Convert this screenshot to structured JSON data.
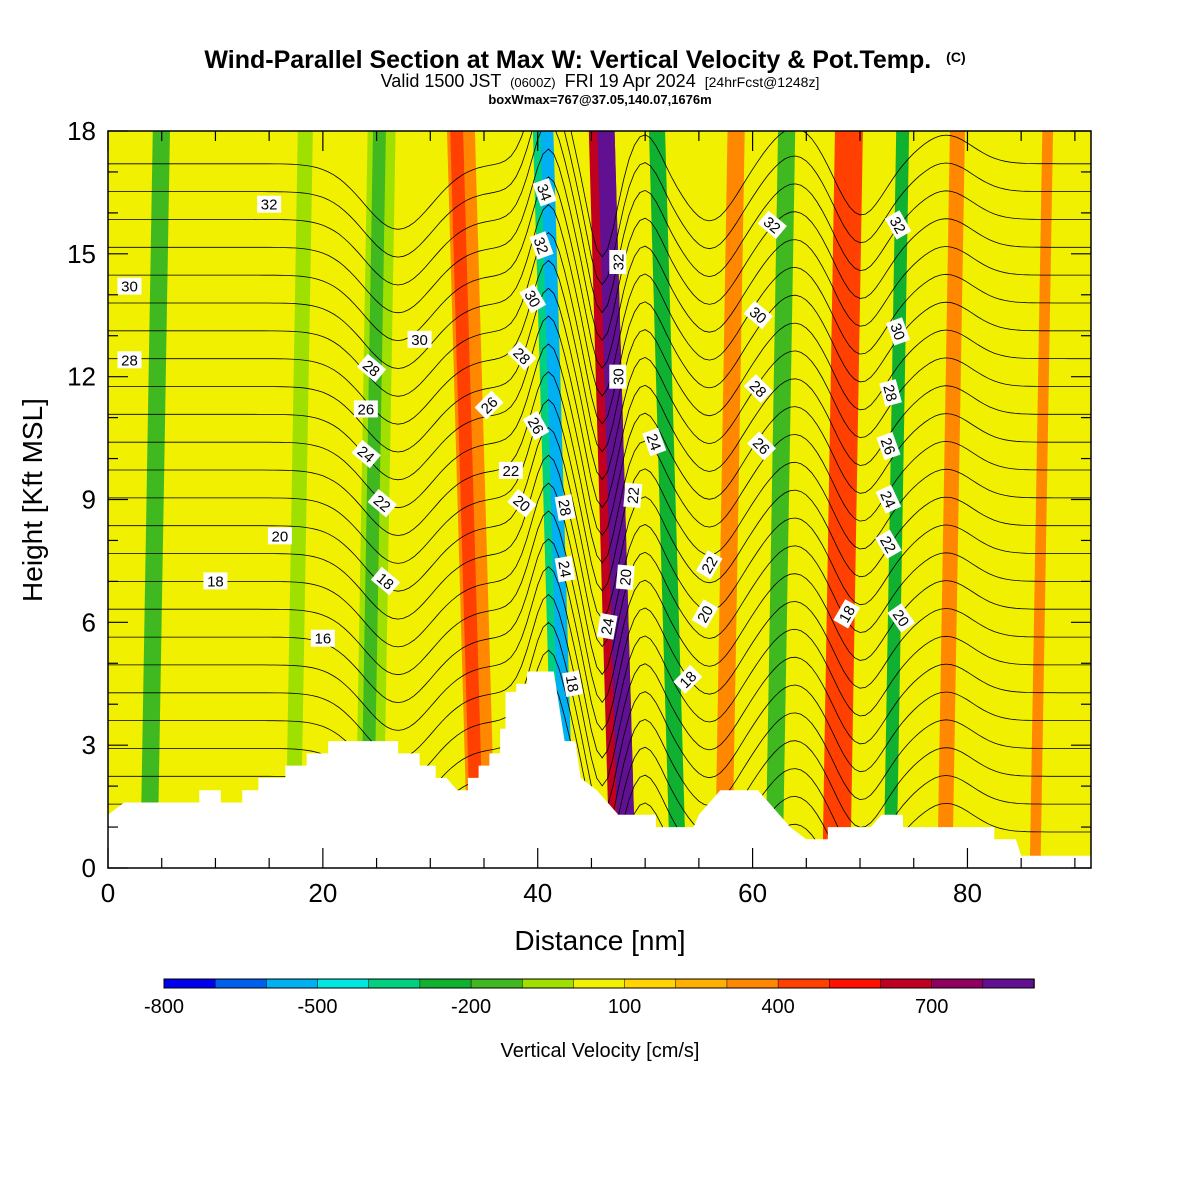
{
  "title": {
    "main": "Wind-Parallel Section at Max W: Vertical Velocity & Pot.Temp.",
    "copyright": "(C)",
    "valid_prefix": "Valid 1500 JST",
    "valid_zulu": "(0600Z)",
    "valid_date": "FRI 19 Apr 2024",
    "forecast": "[24hrFcst@1248z]",
    "box": "boxWmax=767@37.05,140.07,1676m"
  },
  "chart_data": {
    "type": "heatmap",
    "xlabel": "Distance [nm]",
    "ylabel": "Height [Kft MSL]",
    "xlim": [
      0,
      91.5
    ],
    "ylim": [
      0,
      18
    ],
    "x_ticks": [
      0,
      20,
      40,
      60,
      80
    ],
    "y_ticks": [
      0,
      3,
      6,
      9,
      12,
      15,
      18
    ],
    "colorbar": {
      "title": "Vertical Velocity [cm/s]",
      "levels": [
        -800,
        -700,
        -600,
        -500,
        -400,
        -300,
        -200,
        -100,
        0,
        100,
        200,
        300,
        400,
        500,
        600,
        700,
        800
      ],
      "labeled": [
        -800,
        -500,
        -200,
        100,
        400,
        700
      ],
      "colors": [
        "#0000ee",
        "#0060ee",
        "#00b0f0",
        "#00e8e0",
        "#00d080",
        "#10b030",
        "#40b820",
        "#a0e000",
        "#f0f000",
        "#ffd400",
        "#ffb000",
        "#ff8800",
        "#ff4000",
        "#ff1000",
        "#c00020",
        "#900060",
        "#601090"
      ]
    },
    "velocity_bands": [
      {
        "x": 0,
        "w": 11,
        "v": -100
      },
      {
        "x": 3,
        "w": 1.6,
        "v": -300
      },
      {
        "x": 7.3,
        "w": 1.2,
        "v": -100
      },
      {
        "x": 16.5,
        "w": 1.4,
        "v": -200
      },
      {
        "x": 23,
        "w": 2.6,
        "v": -200
      },
      {
        "x": 23.5,
        "w": 1.2,
        "v": -300
      },
      {
        "x": 33.5,
        "w": 2.6,
        "v": 200
      },
      {
        "x": 33.8,
        "w": 1.2,
        "v": 300
      },
      {
        "x": 41.5,
        "w": 1.4,
        "v": -500
      },
      {
        "x": 42.2,
        "w": 1.2,
        "v": -700
      },
      {
        "x": 46.7,
        "w": 2.4,
        "v": 500
      },
      {
        "x": 47.5,
        "w": 1.6,
        "v": 700
      },
      {
        "x": 52.3,
        "w": 1.5,
        "v": -400
      },
      {
        "x": 56.5,
        "w": 1.6,
        "v": 200
      },
      {
        "x": 61.2,
        "w": 1.6,
        "v": -300
      },
      {
        "x": 66.5,
        "w": 2.6,
        "v": 300
      },
      {
        "x": 72.2,
        "w": 1.2,
        "v": -400
      },
      {
        "x": 77.2,
        "w": 1.4,
        "v": 200
      },
      {
        "x": 80.8,
        "w": 1.6,
        "v": -100
      },
      {
        "x": 85.8,
        "w": 1.0,
        "v": 200
      },
      {
        "x": 88.7,
        "w": 1.5,
        "v": -100
      }
    ],
    "terrain": [
      [
        0,
        1.3
      ],
      [
        1.5,
        1.6
      ],
      [
        8.5,
        1.6
      ],
      [
        8.5,
        1.9
      ],
      [
        10.5,
        1.9
      ],
      [
        10.5,
        1.6
      ],
      [
        12.5,
        1.6
      ],
      [
        12.5,
        1.9
      ],
      [
        14,
        1.9
      ],
      [
        14,
        2.2
      ],
      [
        16.5,
        2.2
      ],
      [
        16.5,
        2.5
      ],
      [
        18.5,
        2.5
      ],
      [
        18.5,
        2.8
      ],
      [
        20.5,
        2.8
      ],
      [
        20.5,
        3.1
      ],
      [
        27,
        3.1
      ],
      [
        27,
        2.8
      ],
      [
        29,
        2.8
      ],
      [
        29,
        2.5
      ],
      [
        30.5,
        2.5
      ],
      [
        30.5,
        2.2
      ],
      [
        31.5,
        2.2
      ],
      [
        32.5,
        1.9
      ],
      [
        33.5,
        1.9
      ],
      [
        33.5,
        2.2
      ],
      [
        34.5,
        2.2
      ],
      [
        34.5,
        2.5
      ],
      [
        35.5,
        2.5
      ],
      [
        35.5,
        2.8
      ],
      [
        36.5,
        2.8
      ],
      [
        36.5,
        3.4
      ],
      [
        37,
        3.4
      ],
      [
        37,
        4.3
      ],
      [
        38,
        4.3
      ],
      [
        38,
        4.5
      ],
      [
        39,
        4.5
      ],
      [
        39,
        4.8
      ],
      [
        41,
        4.8
      ],
      [
        41.5,
        4.8
      ],
      [
        42.5,
        3.1
      ],
      [
        43.5,
        3.1
      ],
      [
        44,
        2.2
      ],
      [
        45.5,
        1.9
      ],
      [
        46.5,
        1.6
      ],
      [
        47.5,
        1.3
      ],
      [
        51,
        1.3
      ],
      [
        51,
        1.0
      ],
      [
        54.5,
        1.0
      ],
      [
        55,
        1.3
      ],
      [
        56,
        1.6
      ],
      [
        57,
        1.9
      ],
      [
        60.5,
        1.9
      ],
      [
        61.5,
        1.6
      ],
      [
        62.5,
        1.3
      ],
      [
        63.5,
        1.0
      ],
      [
        65,
        0.7
      ],
      [
        67,
        0.7
      ],
      [
        67,
        1.0
      ],
      [
        71,
        1.0
      ],
      [
        72,
        1.3
      ],
      [
        74,
        1.3
      ],
      [
        74,
        1.0
      ],
      [
        82.5,
        1.0
      ],
      [
        82.5,
        0.7
      ],
      [
        84.5,
        0.7
      ],
      [
        85,
        0.3
      ],
      [
        91.5,
        0.3
      ]
    ],
    "isentrope_values": [
      10.5,
      11.5,
      12.5,
      13.5,
      14.5,
      15.5,
      16.5,
      17.5,
      18.5,
      19.5,
      20.5,
      21.5,
      22.5,
      23.5,
      24.5,
      25.5,
      26.5,
      27.5,
      28.5,
      29.5,
      30.5,
      31.5,
      32.5,
      33.5,
      34.5,
      35.5
    ],
    "contour_labels": [
      {
        "t": "32",
        "x": 15,
        "y": 16.2,
        "r": 0
      },
      {
        "t": "30",
        "x": 2,
        "y": 14.2,
        "r": 0
      },
      {
        "t": "28",
        "x": 2,
        "y": 12.4,
        "r": 0
      },
      {
        "t": "28",
        "x": 24.5,
        "y": 12.2,
        "r": 40
      },
      {
        "t": "30",
        "x": 29,
        "y": 12.9,
        "r": 0
      },
      {
        "t": "26",
        "x": 24,
        "y": 11.2,
        "r": 0
      },
      {
        "t": "24",
        "x": 24,
        "y": 10.1,
        "r": 40
      },
      {
        "t": "22",
        "x": 25.5,
        "y": 8.9,
        "r": 40
      },
      {
        "t": "20",
        "x": 16,
        "y": 8.1,
        "r": 0
      },
      {
        "t": "18",
        "x": 10,
        "y": 7.0,
        "r": 0
      },
      {
        "t": "18",
        "x": 25.8,
        "y": 7.0,
        "r": 40
      },
      {
        "t": "16",
        "x": 20,
        "y": 5.6,
        "r": 0
      },
      {
        "t": "26",
        "x": 35.5,
        "y": 11.3,
        "r": -45
      },
      {
        "t": "22",
        "x": 37.5,
        "y": 9.7,
        "r": 0
      },
      {
        "t": "20",
        "x": 38.5,
        "y": 8.9,
        "r": 40
      },
      {
        "t": "28",
        "x": 38.5,
        "y": 12.5,
        "r": 45
      },
      {
        "t": "26",
        "x": 39.8,
        "y": 10.8,
        "r": 60
      },
      {
        "t": "30",
        "x": 39.5,
        "y": 13.9,
        "r": 60
      },
      {
        "t": "32",
        "x": 40.3,
        "y": 15.2,
        "r": 70
      },
      {
        "t": "34",
        "x": 40.6,
        "y": 16.5,
        "r": 70
      },
      {
        "t": "28",
        "x": 42.5,
        "y": 8.8,
        "r": 80
      },
      {
        "t": "24",
        "x": 42.5,
        "y": 7.3,
        "r": 80
      },
      {
        "t": "18",
        "x": 43.2,
        "y": 4.5,
        "r": 80
      },
      {
        "t": "32",
        "x": 47.5,
        "y": 14.8,
        "r": -90
      },
      {
        "t": "30",
        "x": 47.5,
        "y": 12.0,
        "r": -90
      },
      {
        "t": "22",
        "x": 48.9,
        "y": 9.1,
        "r": -85
      },
      {
        "t": "20",
        "x": 48.2,
        "y": 7.1,
        "r": -85
      },
      {
        "t": "24",
        "x": 46.5,
        "y": 5.9,
        "r": -80
      },
      {
        "t": "24",
        "x": 50.8,
        "y": 10.4,
        "r": 70
      },
      {
        "t": "22",
        "x": 56.0,
        "y": 7.4,
        "r": -60
      },
      {
        "t": "20",
        "x": 55.6,
        "y": 6.2,
        "r": -60
      },
      {
        "t": "18",
        "x": 54.0,
        "y": 4.6,
        "r": -45
      },
      {
        "t": "32",
        "x": 61.8,
        "y": 15.7,
        "r": 40
      },
      {
        "t": "30",
        "x": 60.5,
        "y": 13.5,
        "r": 40
      },
      {
        "t": "28",
        "x": 60.5,
        "y": 11.7,
        "r": 45
      },
      {
        "t": "26",
        "x": 60.8,
        "y": 10.3,
        "r": 45
      },
      {
        "t": "18",
        "x": 68.8,
        "y": 6.2,
        "r": -60
      },
      {
        "t": "32",
        "x": 73.5,
        "y": 15.7,
        "r": 60
      },
      {
        "t": "30",
        "x": 73.5,
        "y": 13.1,
        "r": 70
      },
      {
        "t": "28",
        "x": 72.8,
        "y": 11.6,
        "r": 75
      },
      {
        "t": "26",
        "x": 72.6,
        "y": 10.3,
        "r": 70
      },
      {
        "t": "24",
        "x": 72.6,
        "y": 9.0,
        "r": 65
      },
      {
        "t": "22",
        "x": 72.6,
        "y": 7.9,
        "r": 60
      },
      {
        "t": "20",
        "x": 73.8,
        "y": 6.1,
        "r": 55
      }
    ]
  }
}
